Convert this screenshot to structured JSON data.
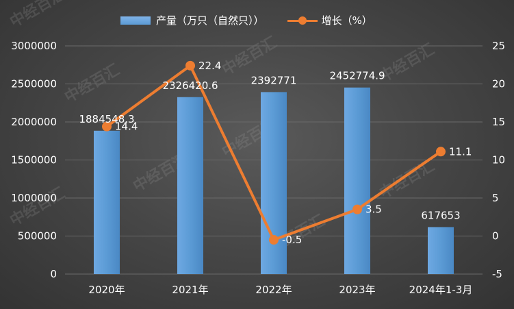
{
  "legend": {
    "bar_label": "产量（万只（自然只））",
    "line_label": "增长（%）"
  },
  "watermark": "中经百汇",
  "colors": {
    "bar": "#5b9bd5",
    "line": "#ed7d31",
    "text": "#ffffff",
    "background": "#3c3c3c"
  },
  "chart_data": {
    "type": "bar",
    "categories": [
      "2020年",
      "2021年",
      "2022年",
      "2023年",
      "2024年1-3月"
    ],
    "series": [
      {
        "name": "产量（万只（自然只））",
        "type": "bar",
        "axis": "left",
        "values": [
          1884548.3,
          2326420.6,
          2392771,
          2452774.9,
          617653
        ],
        "labels": [
          "1884548.3",
          "2326420.6",
          "2392771",
          "2452774.9",
          "617653"
        ]
      },
      {
        "name": "增长（%）",
        "type": "line",
        "axis": "right",
        "values": [
          14.4,
          22.4,
          -0.5,
          3.5,
          11.1
        ],
        "labels": [
          "14.4",
          "22.4",
          "-0.5",
          "3.5",
          "11.1"
        ]
      }
    ],
    "y_left": {
      "min": 0,
      "max": 3000000,
      "ticks": [
        "0",
        "500000",
        "1000000",
        "1500000",
        "2000000",
        "2500000",
        "3000000"
      ]
    },
    "y_right": {
      "min": -5,
      "max": 25,
      "ticks": [
        "-5",
        "0",
        "5",
        "10",
        "15",
        "20",
        "25"
      ]
    },
    "grid": true,
    "legend_position": "top"
  }
}
